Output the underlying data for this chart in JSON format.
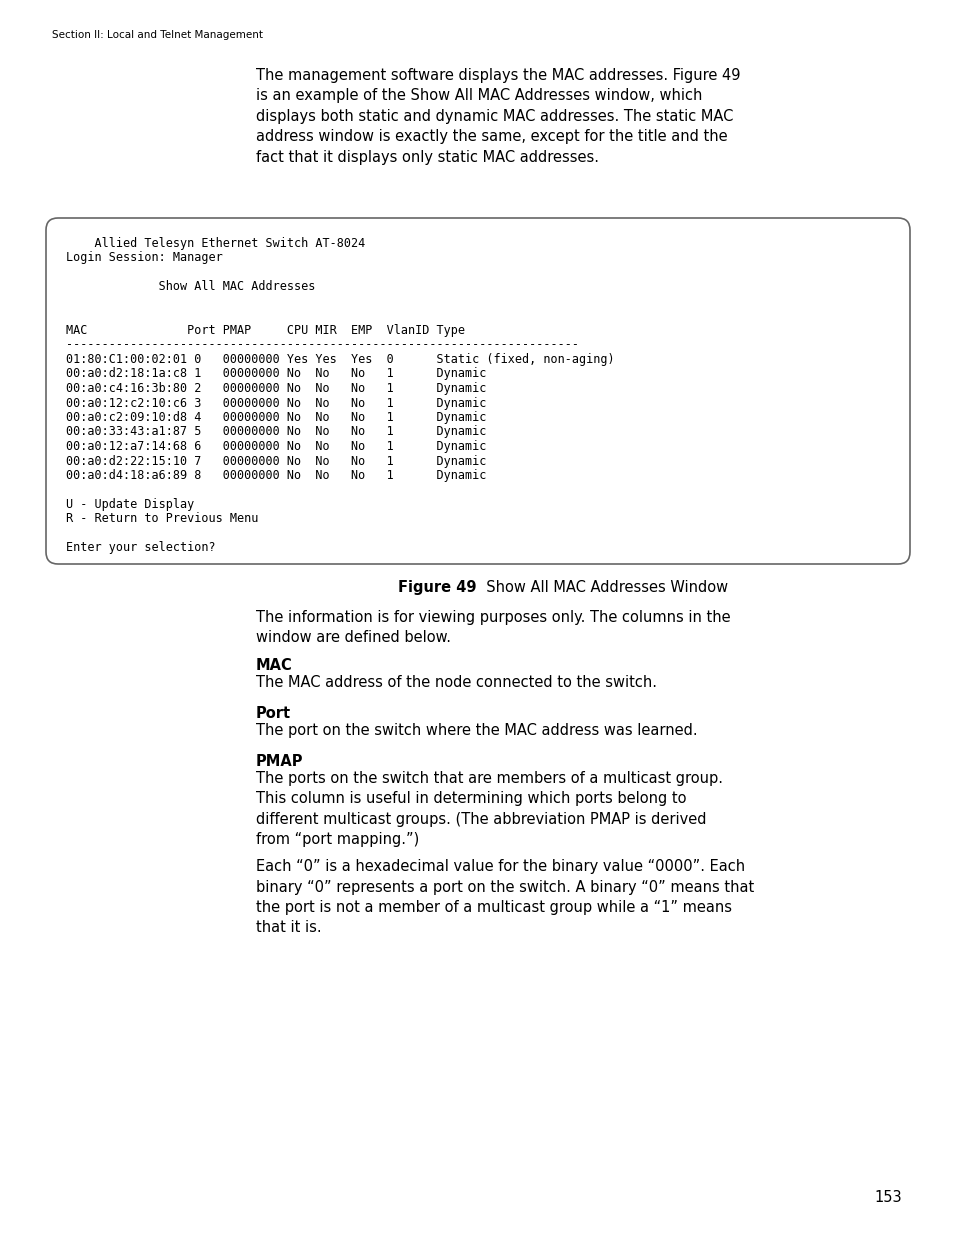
{
  "page_bg": "#ffffff",
  "header_text": "Section II: Local and Telnet Management",
  "header_fontsize": 7.5,
  "header_color": "#000000",
  "intro_paragraph": "The management software displays the MAC addresses. Figure 49\nis an example of the Show All MAC Addresses window, which\ndisplays both static and dynamic MAC addresses. The static MAC\naddress window is exactly the same, except for the title and the\nfact that it displays only static MAC addresses.",
  "terminal_content_lines": [
    "    Allied Telesyn Ethernet Switch AT-8024",
    "Login Session: Manager",
    "",
    "             Show All MAC Addresses",
    "",
    "",
    "MAC              Port PMAP     CPU MIR  EMP  VlanID Type",
    "------------------------------------------------------------------------",
    "01:80:C1:00:02:01 0   00000000 Yes Yes  Yes  0      Static (fixed, non-aging)",
    "00:a0:d2:18:1a:c8 1   00000000 No  No   No   1      Dynamic",
    "00:a0:c4:16:3b:80 2   00000000 No  No   No   1      Dynamic",
    "00:a0:12:c2:10:c6 3   00000000 No  No   No   1      Dynamic",
    "00:a0:c2:09:10:d8 4   00000000 No  No   No   1      Dynamic",
    "00:a0:33:43:a1:87 5   00000000 No  No   No   1      Dynamic",
    "00:a0:12:a7:14:68 6   00000000 No  No   No   1      Dynamic",
    "00:a0:d2:22:15:10 7   00000000 No  No   No   1      Dynamic",
    "00:a0:d4:18:a6:89 8   00000000 No  No   No   1      Dynamic",
    "",
    "U - Update Display",
    "R - Return to Previous Menu",
    "",
    "Enter your selection?"
  ],
  "figure_label_bold": "Figure 49",
  "figure_label_normal": "  Show All MAC Addresses Window",
  "body_sections": [
    {
      "type": "paragraph",
      "text": "The information is for viewing purposes only. The columns in the\nwindow are defined below."
    },
    {
      "type": "heading",
      "text": "MAC"
    },
    {
      "type": "paragraph",
      "text": "The MAC address of the node connected to the switch."
    },
    {
      "type": "heading",
      "text": "Port"
    },
    {
      "type": "paragraph",
      "text": "The port on the switch where the MAC address was learned."
    },
    {
      "type": "heading",
      "text": "PMAP"
    },
    {
      "type": "paragraph",
      "text": "The ports on the switch that are members of a multicast group.\nThis column is useful in determining which ports belong to\ndifferent multicast groups. (The abbreviation PMAP is derived\nfrom “port mapping.”)"
    },
    {
      "type": "spacer"
    },
    {
      "type": "paragraph",
      "text": "Each “0” is a hexadecimal value for the binary value “0000”. Each\nbinary “0” represents a port on the switch. A binary “0” means that\nthe port is not a member of a multicast group while a “1” means\nthat it is."
    }
  ],
  "page_number": "153",
  "body_fontsize": 10.5,
  "heading_fontsize": 10.5,
  "mono_fontsize": 8.5,
  "intro_fontsize": 10.5
}
